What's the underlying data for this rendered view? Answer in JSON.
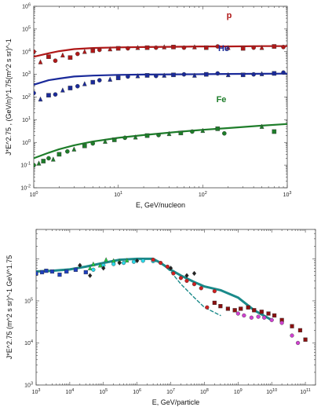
{
  "chart_data": [
    {
      "type": "scatter",
      "xscale": "log",
      "yscale": "log",
      "xlim": [
        1,
        1000
      ],
      "ylim": [
        0.01,
        1000000
      ],
      "xlabel": "E, GeV/nucleon",
      "ylabel": "J*E^2.75 , (GeV/n)^1.75(m^2 s sr)^-1",
      "xticks": [
        "10^0",
        "10^1",
        "10^2",
        "10^3"
      ],
      "yticks": [
        "10^-2",
        "10^-1",
        "10^0",
        "10^1",
        "10^2",
        "10^3",
        "10^4",
        "10^5",
        "10^6"
      ],
      "series": [
        {
          "name": "p",
          "color": "#b01818",
          "fit_curve": {
            "x": [
              1,
              1.5,
              2,
              3,
              5,
              10,
              20,
              50,
              100,
              200,
              500,
              1000
            ],
            "y": [
              6000,
              8500,
              10500,
              13000,
              14500,
              15500,
              16000,
              16500,
              17000,
              17000,
              17500,
              17500
            ]
          },
          "points": {
            "x": [
              1,
              1.2,
              1.5,
              1.8,
              2.2,
              2.7,
              3.3,
              4,
              5,
              6,
              8,
              10,
              13,
              17,
              22,
              28,
              35,
              45,
              60,
              80,
              110,
              150,
              200,
              300,
              400,
              500,
              700,
              900
            ],
            "y": [
              10000,
              3500,
              6000,
              4000,
              7000,
              5500,
              8000,
              10000,
              11000,
              12000,
              13000,
              14000,
              14000,
              15000,
              15000,
              15000,
              16000,
              16000,
              15000,
              16000,
              15000,
              17000,
              15000,
              14000,
              15000,
              15000,
              17000,
              16000
            ]
          }
        },
        {
          "name": "He",
          "color": "#1a2a9a",
          "fit_curve": {
            "x": [
              1,
              1.5,
              2,
              3,
              5,
              10,
              20,
              50,
              100,
              200,
              500,
              1000
            ],
            "y": [
              350,
              550,
              650,
              800,
              880,
              950,
              980,
              1000,
              1020,
              1040,
              1060,
              1080
            ]
          },
          "points": {
            "x": [
              1,
              1.2,
              1.5,
              1.8,
              2.2,
              2.7,
              3.3,
              4,
              5,
              6,
              8,
              10,
              13,
              17,
              22,
              28,
              35,
              45,
              60,
              80,
              110,
              150,
              200,
              300,
              400,
              500,
              700,
              900
            ],
            "y": [
              150,
              80,
              120,
              130,
              200,
              250,
              300,
              380,
              450,
              550,
              600,
              700,
              800,
              850,
              900,
              850,
              900,
              950,
              1000,
              900,
              1000,
              1100,
              950,
              950,
              1000,
              1050,
              1100,
              1200
            ]
          }
        },
        {
          "name": "Fe",
          "color": "#1e7d2a",
          "fit_curve": {
            "x": [
              1,
              1.5,
              2,
              3,
              5,
              10,
              20,
              50,
              100,
              200,
              500,
              1000
            ],
            "y": [
              0.2,
              0.35,
              0.5,
              0.75,
              1.1,
              1.6,
              2.1,
              2.9,
              3.6,
              4.3,
              5.5,
              6.5
            ]
          },
          "points": {
            "x": [
              1,
              1.15,
              1.3,
              1.5,
              1.7,
              2,
              2.5,
              3,
              4,
              5,
              7,
              9,
              12,
              16,
              22,
              30,
              40,
              55,
              75,
              100,
              150,
              180,
              500,
              700
            ],
            "y": [
              0.1,
              0.12,
              0.15,
              0.2,
              0.18,
              0.3,
              0.4,
              0.5,
              0.7,
              0.9,
              1.1,
              1.3,
              1.6,
              1.7,
              2,
              2.1,
              2.4,
              2.6,
              3,
              3.3,
              4,
              2.5,
              5,
              3
            ]
          }
        }
      ]
    },
    {
      "type": "scatter",
      "xscale": "log",
      "yscale": "log",
      "xlim": [
        1000,
        200000000000
      ],
      "ylim": [
        100,
        500000
      ],
      "xlabel": "E, GeV/particle",
      "ylabel": "J*E^2.75 (m^2 s sr)^-1 GeV^1.75",
      "xticks": [
        "10^3",
        "10^4",
        "10^5",
        "10^6",
        "10^7",
        "10^8",
        "10^9",
        "10^10",
        "10^11"
      ],
      "yticks": [
        "10^3",
        "10^4",
        "10^5"
      ],
      "series": [
        {
          "name": "",
          "color": "#1a8a8a",
          "fit_curve": {
            "x": [
              1000,
              3000,
              10000,
              30000,
              100000,
              300000,
              1000000,
              3000000,
              5000000,
              10000000,
              20000000,
              50000000,
              100000000,
              300000000,
              1000000000,
              3000000000,
              10000000000
            ],
            "y": [
              50000,
              52000,
              56000,
              65000,
              80000,
              95000,
              100000,
              100000,
              80000,
              55000,
              40000,
              28000,
              22000,
              18000,
              12000,
              6000,
              3500
            ]
          }
        },
        {
          "name": "",
          "color": "#1a8a8a",
          "fit_curve": {
            "x": [
              3000000,
              5000000,
              10000000,
              20000000,
              50000000,
              100000000,
              300000000
            ],
            "y": [
              90000,
              80000,
              50000,
              25000,
              12000,
              7000,
              4500
            ]
          }
        },
        {
          "name": "",
          "color": "#1e3fbf",
          "points": {
            "x": [
              1000,
              1500,
              2000,
              3000,
              5000,
              8000,
              15000,
              30000
            ],
            "y": [
              45000,
              48000,
              52000,
              50000,
              42000,
              50000,
              55000,
              48000
            ]
          }
        },
        {
          "name": "",
          "color": "#20d040",
          "points": {
            "x": [
              40000,
              50000,
              80000,
              120000,
              200000,
              300000,
              500000
            ],
            "y": [
              60000,
              75000,
              70000,
              95000,
              90000,
              88000,
              92000
            ]
          }
        },
        {
          "name": "",
          "color": "#2ad8e8",
          "points": {
            "x": [
              50000,
              100000,
              200000,
              400000,
              800000,
              1500000,
              3000000
            ],
            "y": [
              55000,
              70000,
              75000,
              80000,
              85000,
              90000,
              88000
            ]
          }
        },
        {
          "name": "",
          "color": "#d02020",
          "points": {
            "x": [
              3000000,
              5000000,
              8000000,
              12000000,
              20000000,
              30000000,
              50000000,
              80000000,
              120000000,
              200000000
            ],
            "y": [
              95000,
              80000,
              65000,
              45000,
              35000,
              30000,
              25000,
              20000,
              7000,
              17000
            ]
          }
        },
        {
          "name": "",
          "color": "#8a1010",
          "points": {
            "x": [
              200000000,
              300000000,
              500000000,
              800000000,
              1200000000,
              2000000000,
              3000000000,
              5000000000,
              8000000000,
              12000000000,
              20000000000,
              40000000000,
              70000000000,
              100000000000
            ],
            "y": [
              9000,
              7500,
              6500,
              6000,
              6500,
              7000,
              6000,
              5500,
              5000,
              4500,
              3500,
              2500,
              2000,
              1200
            ]
          }
        },
        {
          "name": "",
          "color": "#d040d0",
          "points": {
            "x": [
              1000000000,
              1500000000,
              2500000000,
              4000000000,
              6000000000,
              10000000000,
              20000000000,
              40000000000,
              60000000000
            ],
            "y": [
              5000,
              4500,
              4000,
              4200,
              4000,
              3500,
              3000,
              1500,
              1000
            ]
          }
        },
        {
          "name": "",
          "color": "#222222",
          "points": {
            "x": [
              20000,
              40000,
              100000,
              300000,
              1000000,
              10000000,
              30000000,
              50000000
            ],
            "y": [
              70000,
              40000,
              60000,
              80000,
              90000,
              60000,
              40000,
              45000
            ]
          }
        }
      ]
    }
  ]
}
